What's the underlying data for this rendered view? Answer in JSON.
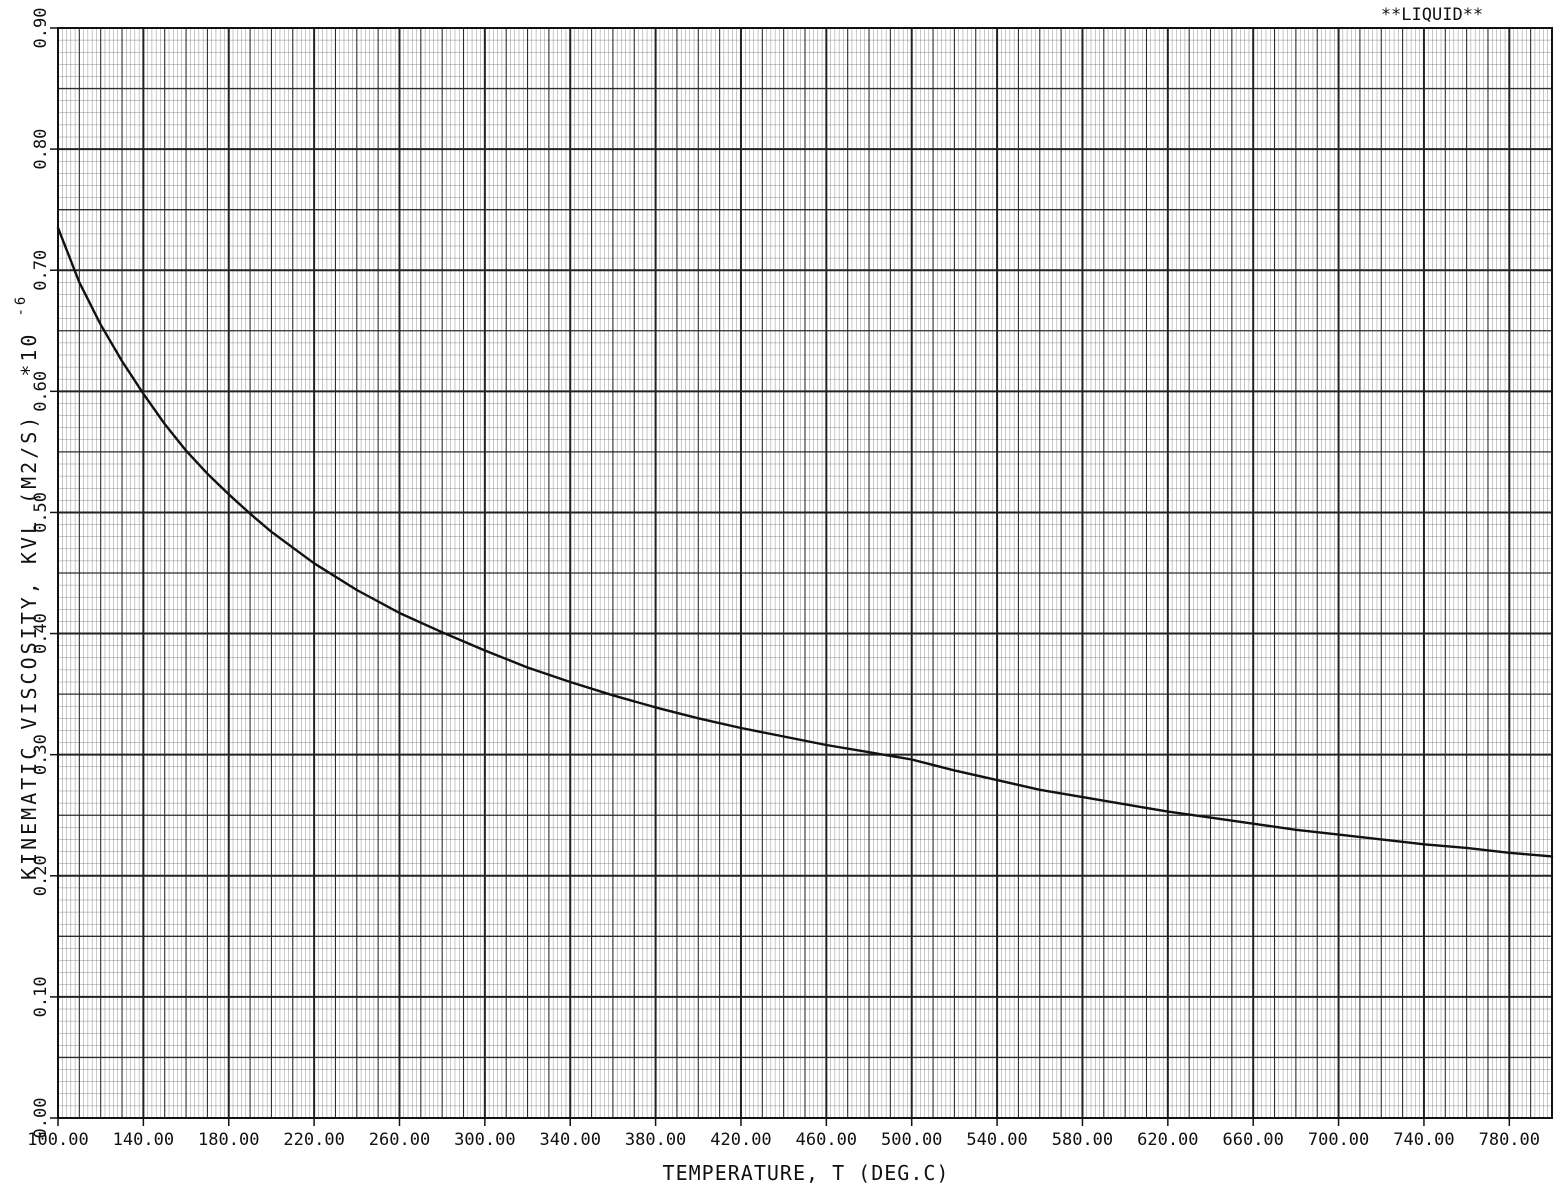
{
  "chart_data": {
    "type": "line",
    "title": "**LIQUID**",
    "xlabel": "TEMPERATURE, T (DEG.C)",
    "ylabel": "KINEMATIC VISCOSITY, KVL (M2/S)",
    "ylabel_multiplier": "*10",
    "ylabel_exponent": "-6",
    "xlim": [
      100,
      800
    ],
    "ylim": [
      0.0,
      0.9
    ],
    "x_ticks": [
      100,
      140,
      180,
      220,
      260,
      300,
      340,
      380,
      420,
      460,
      500,
      540,
      580,
      620,
      660,
      700,
      740,
      780
    ],
    "x_tick_labels": [
      "100.00",
      "140.00",
      "180.00",
      "220.00",
      "260.00",
      "300.00",
      "340.00",
      "380.00",
      "420.00",
      "460.00",
      "500.00",
      "540.00",
      "580.00",
      "620.00",
      "660.00",
      "700.00",
      "740.00",
      "780.00"
    ],
    "y_ticks": [
      0.0,
      0.1,
      0.2,
      0.3,
      0.4,
      0.5,
      0.6,
      0.7,
      0.8,
      0.9
    ],
    "y_tick_labels": [
      "0.00",
      "0.10",
      "0.20",
      "0.30",
      "0.40",
      "0.50",
      "0.60",
      "0.70",
      "0.80",
      "0.90"
    ],
    "grid": true,
    "line_color": "#111111",
    "grid_color": "#222222",
    "series": [
      {
        "x": [
          100,
          110,
          120,
          130,
          140,
          150,
          160,
          170,
          180,
          190,
          200,
          220,
          240,
          260,
          280,
          300,
          320,
          340,
          360,
          380,
          400,
          420,
          440,
          460,
          480,
          500,
          520,
          540,
          560,
          580,
          600,
          620,
          640,
          660,
          680,
          700,
          720,
          740,
          760,
          780,
          800
        ],
        "y": [
          0.735,
          0.69,
          0.655,
          0.625,
          0.598,
          0.573,
          0.551,
          0.532,
          0.515,
          0.499,
          0.484,
          0.458,
          0.436,
          0.417,
          0.401,
          0.386,
          0.372,
          0.36,
          0.349,
          0.339,
          0.33,
          0.322,
          0.315,
          0.308,
          0.302,
          0.296,
          0.287,
          0.279,
          0.271,
          0.265,
          0.259,
          0.253,
          0.248,
          0.243,
          0.238,
          0.234,
          0.23,
          0.226,
          0.223,
          0.219,
          0.216
        ]
      }
    ]
  }
}
